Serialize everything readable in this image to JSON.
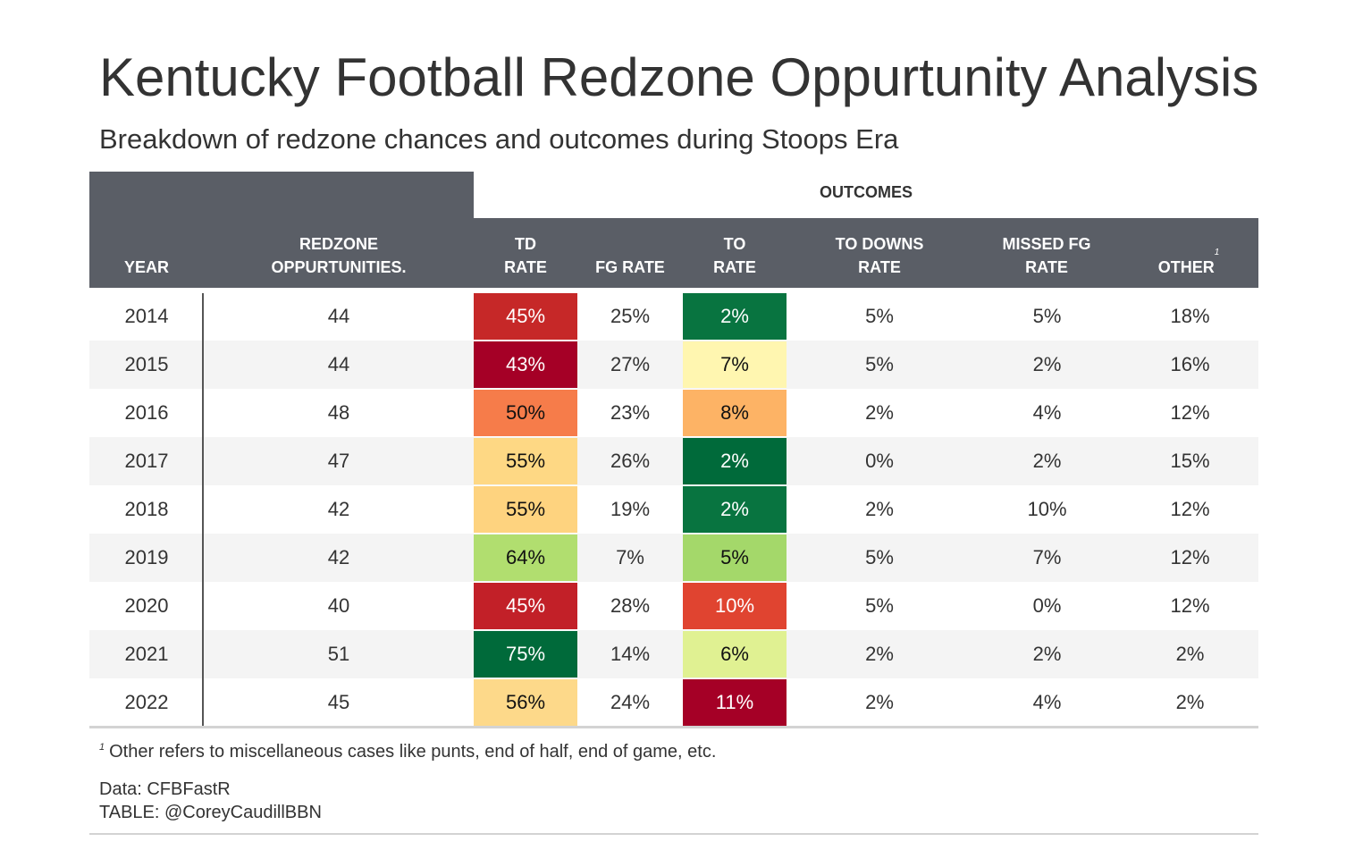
{
  "title": "Kentucky Football Redzone Oppurtunity Analysis",
  "subtitle": "Breakdown of redzone chances and outcomes during Stoops Era",
  "spanner": "OUTCOMES",
  "columns": [
    "YEAR",
    "REDZONE OPPURTUNITIES.",
    "TD RATE",
    "FG RATE",
    "TO RATE",
    "TO DOWNS RATE",
    "MISSED FG RATE",
    "OTHER"
  ],
  "other_footnote_mark": "1",
  "footnote_mark": "1",
  "footnote": "Other refers to miscellaneous cases like punts, end of half, end of game, etc.",
  "source_data": "Data: CFBFastR",
  "source_table": "TABLE: @CoreyCaudillBBN",
  "chart_data": {
    "type": "table",
    "rows": [
      {
        "year": "2014",
        "opps": "44",
        "td": "45%",
        "fg": "25%",
        "to": "2%",
        "downs": "5%",
        "missed": "5%",
        "other": "18%",
        "td_color": "#c62828",
        "to_color": "#087440"
      },
      {
        "year": "2015",
        "opps": "44",
        "td": "43%",
        "fg": "27%",
        "to": "7%",
        "downs": "5%",
        "missed": "2%",
        "other": "16%",
        "td_color": "#a50026",
        "to_color": "#fff6b0"
      },
      {
        "year": "2016",
        "opps": "48",
        "td": "50%",
        "fg": "23%",
        "to": "8%",
        "downs": "2%",
        "missed": "4%",
        "other": "12%",
        "td_color": "#f67c4a",
        "to_color": "#fdb365"
      },
      {
        "year": "2017",
        "opps": "47",
        "td": "55%",
        "fg": "26%",
        "to": "2%",
        "downs": "0%",
        "missed": "2%",
        "other": "15%",
        "td_color": "#fed884",
        "to_color": "#006a3a"
      },
      {
        "year": "2018",
        "opps": "42",
        "td": "55%",
        "fg": "19%",
        "to": "2%",
        "downs": "2%",
        "missed": "10%",
        "other": "12%",
        "td_color": "#fed37f",
        "to_color": "#087440"
      },
      {
        "year": "2019",
        "opps": "42",
        "td": "64%",
        "fg": "7%",
        "to": "5%",
        "downs": "5%",
        "missed": "7%",
        "other": "12%",
        "td_color": "#b1de6f",
        "to_color": "#a4d86a"
      },
      {
        "year": "2020",
        "opps": "40",
        "td": "45%",
        "fg": "28%",
        "to": "10%",
        "downs": "5%",
        "missed": "0%",
        "other": "12%",
        "td_color": "#c22028",
        "to_color": "#e04430"
      },
      {
        "year": "2021",
        "opps": "51",
        "td": "75%",
        "fg": "14%",
        "to": "6%",
        "downs": "2%",
        "missed": "2%",
        "other": "2%",
        "td_color": "#006a3a",
        "to_color": "#e0f192"
      },
      {
        "year": "2022",
        "opps": "45",
        "td": "56%",
        "fg": "24%",
        "to": "11%",
        "downs": "2%",
        "missed": "4%",
        "other": "2%",
        "td_color": "#fdd98a",
        "to_color": "#a50026"
      }
    ]
  }
}
